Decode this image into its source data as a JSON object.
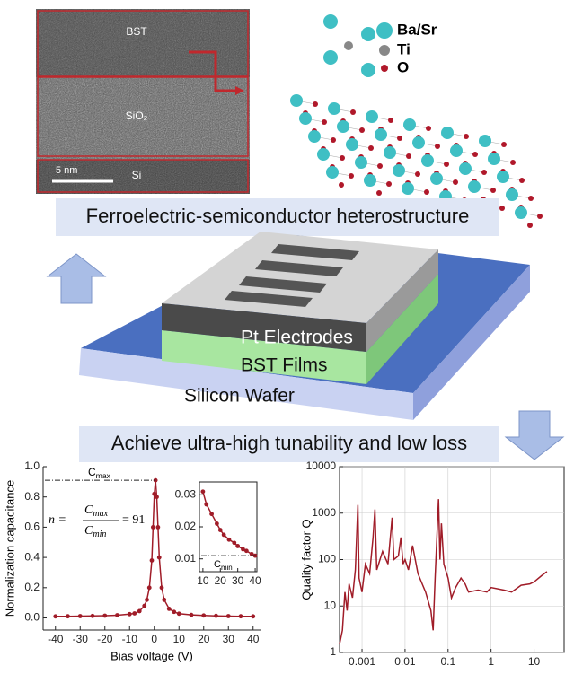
{
  "figure": {
    "tem_labels": [
      "BST",
      "SiO₂",
      "Si"
    ],
    "scale_bar": "5 nm",
    "atom_legend": [
      "Ba/Sr",
      "Ti",
      "O"
    ],
    "caption_top": "Ferroelectric-semiconductor heterostructure",
    "device_labels": [
      "Pt Electrodes",
      "BST Films",
      "Silicon Wafer"
    ],
    "caption_bottom": "Achieve ultra-high tunability and low loss"
  },
  "chart_data": [
    {
      "type": "line",
      "xlabel": "Bias voltage (V)",
      "ylabel": "Normalization capacitance",
      "color": "#a01c28",
      "x": [
        -40,
        -35,
        -30,
        -25,
        -20,
        -15,
        -10,
        -8,
        -6,
        -4,
        -3,
        -2,
        -1,
        -0.5,
        0,
        0.5,
        1,
        1.5,
        2,
        3,
        4,
        6,
        8,
        10,
        15,
        20,
        25,
        30,
        35,
        40
      ],
      "values": [
        0.01,
        0.011,
        0.012,
        0.013,
        0.015,
        0.018,
        0.025,
        0.03,
        0.045,
        0.08,
        0.12,
        0.2,
        0.38,
        0.6,
        0.82,
        0.91,
        0.8,
        0.6,
        0.4,
        0.2,
        0.12,
        0.06,
        0.04,
        0.028,
        0.02,
        0.016,
        0.014,
        0.012,
        0.011,
        0.01
      ],
      "xlim": [
        -45,
        43
      ],
      "ylim": [
        -0.08,
        1.0
      ],
      "xticks": [
        -40,
        -30,
        -20,
        -10,
        0,
        10,
        20,
        30,
        40
      ],
      "yticks": [
        {
          "value": 0,
          "label": "0.0"
        },
        0.2,
        0.4,
        0.6,
        0.8,
        {
          "value": 1,
          "label": "1.0"
        }
      ],
      "annotation": {
        "base": "C",
        "sub": "max"
      },
      "formula": {
        "lhs": "n =",
        "num": {
          "base": "C",
          "sub": "max"
        },
        "den": {
          "base": "C",
          "sub": "min"
        },
        "rhs": "= 91"
      }
    },
    {
      "type": "line",
      "color": "#a01c28",
      "x": [
        10,
        12,
        15,
        18,
        20,
        22,
        25,
        28,
        30,
        33,
        35,
        38,
        40
      ],
      "values": [
        0.031,
        0.027,
        0.024,
        0.021,
        0.019,
        0.0175,
        0.016,
        0.015,
        0.014,
        0.013,
        0.0125,
        0.0115,
        0.011
      ],
      "xlim": [
        8,
        41
      ],
      "ylim": [
        0.006,
        0.034
      ],
      "xticks": [
        10,
        20,
        30,
        40
      ],
      "yticks": [
        0.01,
        0.02,
        0.03
      ],
      "annotation": {
        "base": "C",
        "sub": "min"
      }
    },
    {
      "type": "line",
      "xlabel": "Frequency (GHz)",
      "ylabel": "Quality factor Q",
      "color": "#a01c28",
      "log_x": true,
      "log_y": true,
      "grid": true,
      "x": [
        0.0003,
        0.00035,
        0.0004,
        0.00045,
        0.0005,
        0.0006,
        0.0007,
        0.0008,
        0.00085,
        0.001,
        0.0012,
        0.0015,
        0.0018,
        0.002,
        0.0022,
        0.003,
        0.004,
        0.005,
        0.0055,
        0.007,
        0.008,
        0.009,
        0.01,
        0.012,
        0.015,
        0.02,
        0.025,
        0.03,
        0.04,
        0.045,
        0.05,
        0.06,
        0.065,
        0.07,
        0.08,
        0.1,
        0.12,
        0.15,
        0.2,
        0.25,
        0.3,
        0.5,
        0.8,
        1,
        2,
        3,
        5,
        8,
        10,
        15,
        20
      ],
      "values": [
        1.5,
        3,
        20,
        8,
        30,
        15,
        60,
        1500,
        40,
        20,
        80,
        50,
        300,
        1200,
        60,
        150,
        80,
        800,
        100,
        120,
        300,
        80,
        100,
        60,
        200,
        50,
        30,
        20,
        8,
        3,
        40,
        2000,
        100,
        600,
        80,
        40,
        15,
        25,
        40,
        30,
        20,
        22,
        20,
        25,
        22,
        20,
        28,
        30,
        33,
        45,
        55
      ],
      "xlim": [
        0.0003,
        50
      ],
      "ylim": [
        1,
        10000
      ],
      "xticks": [
        0.001,
        0.01,
        0.1,
        1,
        10
      ],
      "yticks": [
        1,
        10,
        100,
        1000,
        10000
      ]
    }
  ]
}
